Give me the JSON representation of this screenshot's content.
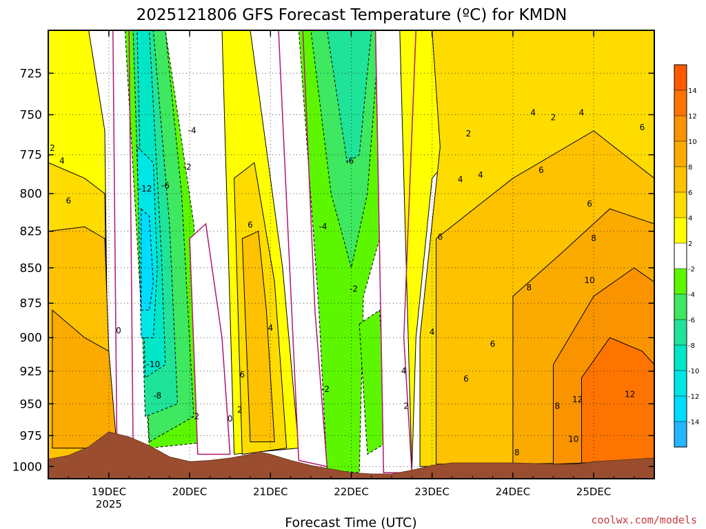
{
  "chart_data": {
    "type": "heatmap",
    "title": "2025121806 GFS Forecast Temperature (ºC) for KMDN",
    "xlabel": "Forecast Time (UTC)",
    "x_ticks": [
      "19DEC",
      "20DEC",
      "21DEC",
      "22DEC",
      "23DEC",
      "24DEC",
      "25DEC"
    ],
    "x_tick_sublabel": {
      "at": "19DEC",
      "text": "2025"
    },
    "x_range_days": [
      18.25,
      25.75
    ],
    "y_ticks": [
      725,
      750,
      775,
      800,
      825,
      850,
      875,
      900,
      925,
      950,
      975,
      1000
    ],
    "y_range_hpa": [
      700,
      1010
    ],
    "y_scale": "log-pressure",
    "grid": true,
    "colorbar": {
      "ticks": [
        14,
        12,
        10,
        8,
        6,
        4,
        2,
        -2,
        -4,
        -6,
        -8,
        -10,
        -12,
        -14
      ],
      "bins": [
        {
          "range": [
            14,
            16
          ],
          "color": "#ff5a00"
        },
        {
          "range": [
            12,
            14
          ],
          "color": "#fd7400"
        },
        {
          "range": [
            10,
            12
          ],
          "color": "#fa9300"
        },
        {
          "range": [
            8,
            10
          ],
          "color": "#fbab00"
        },
        {
          "range": [
            6,
            8
          ],
          "color": "#fec200"
        },
        {
          "range": [
            4,
            6
          ],
          "color": "#ffdc00"
        },
        {
          "range": [
            2,
            4
          ],
          "color": "#ffff00"
        },
        {
          "range": [
            -2,
            2
          ],
          "color": "#ffffff"
        },
        {
          "range": [
            -4,
            -2
          ],
          "color": "#5cf700"
        },
        {
          "range": [
            -6,
            -4
          ],
          "color": "#3ee860"
        },
        {
          "range": [
            -8,
            -6
          ],
          "color": "#20e39a"
        },
        {
          "range": [
            -10,
            -8
          ],
          "color": "#00e6c6"
        },
        {
          "range": [
            -12,
            -10
          ],
          "color": "#00e6e6"
        },
        {
          "range": [
            -14,
            -12
          ],
          "color": "#00dcff"
        },
        {
          "range": [
            -16,
            -14
          ],
          "color": "#26b5ff"
        }
      ]
    },
    "terrain_color": "#9a4e2f",
    "zero_contour_color": "#b0186e",
    "terrain_surface": [
      {
        "x": 18.25,
        "p": 994
      },
      {
        "x": 18.5,
        "p": 991
      },
      {
        "x": 18.75,
        "p": 984
      },
      {
        "x": 19.0,
        "p": 972
      },
      {
        "x": 19.25,
        "p": 976
      },
      {
        "x": 19.5,
        "p": 983
      },
      {
        "x": 19.75,
        "p": 992
      },
      {
        "x": 20.0,
        "p": 996
      },
      {
        "x": 20.25,
        "p": 995
      },
      {
        "x": 20.5,
        "p": 993
      },
      {
        "x": 20.75,
        "p": 990
      },
      {
        "x": 20.85,
        "p": 988
      },
      {
        "x": 21.0,
        "p": 990
      },
      {
        "x": 21.25,
        "p": 995
      },
      {
        "x": 21.5,
        "p": 999
      },
      {
        "x": 21.75,
        "p": 1002
      },
      {
        "x": 22.0,
        "p": 1005
      },
      {
        "x": 22.25,
        "p": 1006
      },
      {
        "x": 22.5,
        "p": 1006
      },
      {
        "x": 22.75,
        "p": 1003
      },
      {
        "x": 23.0,
        "p": 999
      },
      {
        "x": 23.25,
        "p": 997
      },
      {
        "x": 23.5,
        "p": 997
      },
      {
        "x": 23.75,
        "p": 997
      },
      {
        "x": 24.0,
        "p": 997
      },
      {
        "x": 24.5,
        "p": 998
      },
      {
        "x": 24.8,
        "p": 998
      },
      {
        "x": 25.0,
        "p": 996
      },
      {
        "x": 25.25,
        "p": 995
      },
      {
        "x": 25.5,
        "p": 994
      },
      {
        "x": 25.75,
        "p": 993
      }
    ],
    "temperature_regions": [
      {
        "value": 3,
        "band": [
          [
            18.25,
            700
          ],
          [
            18.75,
            700
          ],
          [
            18.95,
            760
          ],
          [
            19.0,
            1000
          ],
          [
            18.25,
            1000
          ]
        ]
      },
      {
        "value": 5,
        "band": [
          [
            18.25,
            780
          ],
          [
            18.7,
            790
          ],
          [
            18.95,
            800
          ],
          [
            19.0,
            1000
          ],
          [
            18.25,
            1000
          ]
        ]
      },
      {
        "value": 7,
        "band": [
          [
            18.25,
            825
          ],
          [
            18.7,
            822
          ],
          [
            18.95,
            830
          ],
          [
            19.05,
            1000
          ],
          [
            18.25,
            1000
          ]
        ]
      },
      {
        "value": 9,
        "band": [
          [
            18.3,
            880
          ],
          [
            18.7,
            900
          ],
          [
            19.0,
            910
          ],
          [
            19.1,
            985
          ],
          [
            18.3,
            985
          ]
        ]
      },
      {
        "value": -1,
        "band": [
          [
            19.05,
            700
          ],
          [
            19.25,
            700
          ],
          [
            19.3,
            985
          ],
          [
            19.1,
            985
          ]
        ]
      },
      {
        "value": -3,
        "band": [
          [
            19.2,
            700
          ],
          [
            19.7,
            700
          ],
          [
            20.05,
            820
          ],
          [
            20.25,
            980
          ],
          [
            19.5,
            985
          ]
        ]
      },
      {
        "value": -5,
        "band": [
          [
            19.3,
            700
          ],
          [
            19.7,
            700
          ],
          [
            19.9,
            800
          ],
          [
            20.05,
            960
          ],
          [
            19.5,
            980
          ]
        ]
      },
      {
        "value": -7,
        "band": [
          [
            19.3,
            700
          ],
          [
            19.55,
            700
          ],
          [
            19.75,
            820
          ],
          [
            19.85,
            950
          ],
          [
            19.45,
            960
          ]
        ]
      },
      {
        "value": -9,
        "band": [
          [
            19.35,
            700
          ],
          [
            19.5,
            700
          ],
          [
            19.65,
            840
          ],
          [
            19.7,
            920
          ],
          [
            19.45,
            930
          ]
        ]
      },
      {
        "value": -11,
        "band": [
          [
            19.35,
            770
          ],
          [
            19.55,
            780
          ],
          [
            19.6,
            850
          ],
          [
            19.55,
            900
          ],
          [
            19.4,
            900
          ]
        ]
      },
      {
        "value": -13,
        "band": [
          [
            19.4,
            810
          ],
          [
            19.5,
            815
          ],
          [
            19.55,
            860
          ],
          [
            19.5,
            880
          ],
          [
            19.4,
            880
          ]
        ]
      },
      {
        "value": -1,
        "band": [
          [
            20.0,
            830
          ],
          [
            20.2,
            820
          ],
          [
            20.4,
            900
          ],
          [
            20.5,
            990
          ],
          [
            20.1,
            990
          ]
        ]
      },
      {
        "value": 3,
        "band": [
          [
            20.4,
            700
          ],
          [
            20.75,
            700
          ],
          [
            21.15,
            850
          ],
          [
            21.35,
            985
          ],
          [
            20.55,
            990
          ]
        ]
      },
      {
        "value": 5,
        "band": [
          [
            20.55,
            790
          ],
          [
            20.8,
            780
          ],
          [
            21.05,
            860
          ],
          [
            21.2,
            985
          ],
          [
            20.65,
            990
          ]
        ]
      },
      {
        "value": 7,
        "band": [
          [
            20.65,
            830
          ],
          [
            20.85,
            825
          ],
          [
            20.95,
            880
          ],
          [
            21.05,
            980
          ],
          [
            20.75,
            980
          ]
        ]
      },
      {
        "value": -1,
        "band": [
          [
            21.1,
            700
          ],
          [
            21.4,
            700
          ],
          [
            21.55,
            880
          ],
          [
            21.7,
            1000
          ],
          [
            21.35,
            995
          ]
        ]
      },
      {
        "value": -3,
        "band": [
          [
            21.35,
            700
          ],
          [
            22.4,
            700
          ],
          [
            22.35,
            830
          ],
          [
            22.15,
            870
          ],
          [
            22.1,
            1005
          ],
          [
            21.7,
            1003
          ],
          [
            21.6,
            880
          ]
        ]
      },
      {
        "value": -5,
        "band": [
          [
            21.5,
            700
          ],
          [
            22.35,
            700
          ],
          [
            22.2,
            800
          ],
          [
            22.0,
            850
          ],
          [
            21.75,
            800
          ]
        ]
      },
      {
        "value": -7,
        "band": [
          [
            21.7,
            700
          ],
          [
            22.25,
            700
          ],
          [
            22.1,
            775
          ],
          [
            21.95,
            780
          ]
        ]
      },
      {
        "value": -3,
        "band": [
          [
            22.1,
            890
          ],
          [
            22.35,
            880
          ],
          [
            22.45,
            980
          ],
          [
            22.2,
            990
          ]
        ]
      },
      {
        "value": -1,
        "band": [
          [
            22.3,
            700
          ],
          [
            22.8,
            700
          ],
          [
            22.65,
            900
          ],
          [
            22.75,
            1005
          ],
          [
            22.4,
            1005
          ]
        ]
      },
      {
        "value": 3,
        "band": [
          [
            22.6,
            700
          ],
          [
            23.5,
            700
          ],
          [
            23.5,
            760
          ],
          [
            23.0,
            790
          ],
          [
            22.8,
            900
          ],
          [
            22.75,
            1003
          ]
        ]
      },
      {
        "value": 5,
        "band": [
          [
            23.0,
            700
          ],
          [
            25.75,
            700
          ],
          [
            25.75,
            997
          ],
          [
            22.85,
            1000
          ],
          [
            22.85,
            900
          ],
          [
            23.1,
            770
          ]
        ]
      },
      {
        "value": 7,
        "band": [
          [
            23.05,
            830
          ],
          [
            24.0,
            790
          ],
          [
            25.0,
            760
          ],
          [
            25.75,
            790
          ],
          [
            25.75,
            996
          ],
          [
            23.05,
            998
          ]
        ]
      },
      {
        "value": 9,
        "band": [
          [
            24.0,
            870
          ],
          [
            24.6,
            840
          ],
          [
            25.2,
            810
          ],
          [
            25.75,
            820
          ],
          [
            25.75,
            996
          ],
          [
            24.0,
            998
          ]
        ]
      },
      {
        "value": 11,
        "band": [
          [
            24.5,
            920
          ],
          [
            25.0,
            870
          ],
          [
            25.5,
            850
          ],
          [
            25.75,
            860
          ],
          [
            25.75,
            995
          ],
          [
            24.5,
            998
          ]
        ]
      },
      {
        "value": 13,
        "band": [
          [
            24.85,
            930
          ],
          [
            25.2,
            900
          ],
          [
            25.6,
            910
          ],
          [
            25.75,
            920
          ],
          [
            25.75,
            995
          ],
          [
            24.85,
            997
          ]
        ]
      }
    ],
    "contour_labels": [
      {
        "text": "2",
        "x": 18.3,
        "p": 771
      },
      {
        "text": "4",
        "x": 18.42,
        "p": 779
      },
      {
        "text": "6",
        "x": 18.5,
        "p": 805
      },
      {
        "text": "0",
        "x": 19.12,
        "p": 895
      },
      {
        "text": "-12",
        "x": 19.45,
        "p": 797
      },
      {
        "text": "-6",
        "x": 19.7,
        "p": 795
      },
      {
        "text": "-4",
        "x": 20.03,
        "p": 760
      },
      {
        "text": "-2",
        "x": 19.97,
        "p": 783
      },
      {
        "text": "-10",
        "x": 19.55,
        "p": 920
      },
      {
        "text": "-8",
        "x": 19.6,
        "p": 944
      },
      {
        "text": "-2",
        "x": 20.07,
        "p": 960
      },
      {
        "text": "6",
        "x": 20.75,
        "p": 821
      },
      {
        "text": "4",
        "x": 21.0,
        "p": 893
      },
      {
        "text": "6",
        "x": 20.65,
        "p": 928
      },
      {
        "text": "2",
        "x": 20.62,
        "p": 955
      },
      {
        "text": "0",
        "x": 20.5,
        "p": 962
      },
      {
        "text": "-4",
        "x": 21.65,
        "p": 822
      },
      {
        "text": "-6",
        "x": 21.98,
        "p": 779
      },
      {
        "text": "-2",
        "x": 22.03,
        "p": 865
      },
      {
        "text": "-2",
        "x": 21.68,
        "p": 939
      },
      {
        "text": "4",
        "x": 23.0,
        "p": 896
      },
      {
        "text": "6",
        "x": 23.1,
        "p": 829
      },
      {
        "text": "4",
        "x": 23.35,
        "p": 791
      },
      {
        "text": "2",
        "x": 23.45,
        "p": 762
      },
      {
        "text": "4",
        "x": 23.6,
        "p": 788
      },
      {
        "text": "4",
        "x": 24.25,
        "p": 749
      },
      {
        "text": "2",
        "x": 24.5,
        "p": 752
      },
      {
        "text": "4",
        "x": 24.85,
        "p": 749
      },
      {
        "text": "6",
        "x": 25.6,
        "p": 758
      },
      {
        "text": "6",
        "x": 24.35,
        "p": 785
      },
      {
        "text": "6",
        "x": 24.95,
        "p": 807
      },
      {
        "text": "8",
        "x": 25.0,
        "p": 830
      },
      {
        "text": "8",
        "x": 24.2,
        "p": 864
      },
      {
        "text": "10",
        "x": 24.95,
        "p": 859
      },
      {
        "text": "6",
        "x": 23.75,
        "p": 905
      },
      {
        "text": "6",
        "x": 23.42,
        "p": 931
      },
      {
        "text": "4",
        "x": 22.65,
        "p": 925
      },
      {
        "text": "2",
        "x": 22.68,
        "p": 952
      },
      {
        "text": "8",
        "x": 24.55,
        "p": 952
      },
      {
        "text": "12",
        "x": 24.8,
        "p": 947
      },
      {
        "text": "12",
        "x": 25.45,
        "p": 943
      },
      {
        "text": "10",
        "x": 24.75,
        "p": 978
      },
      {
        "text": "8",
        "x": 24.05,
        "p": 989
      }
    ]
  },
  "credit": "coolwx.com/models"
}
